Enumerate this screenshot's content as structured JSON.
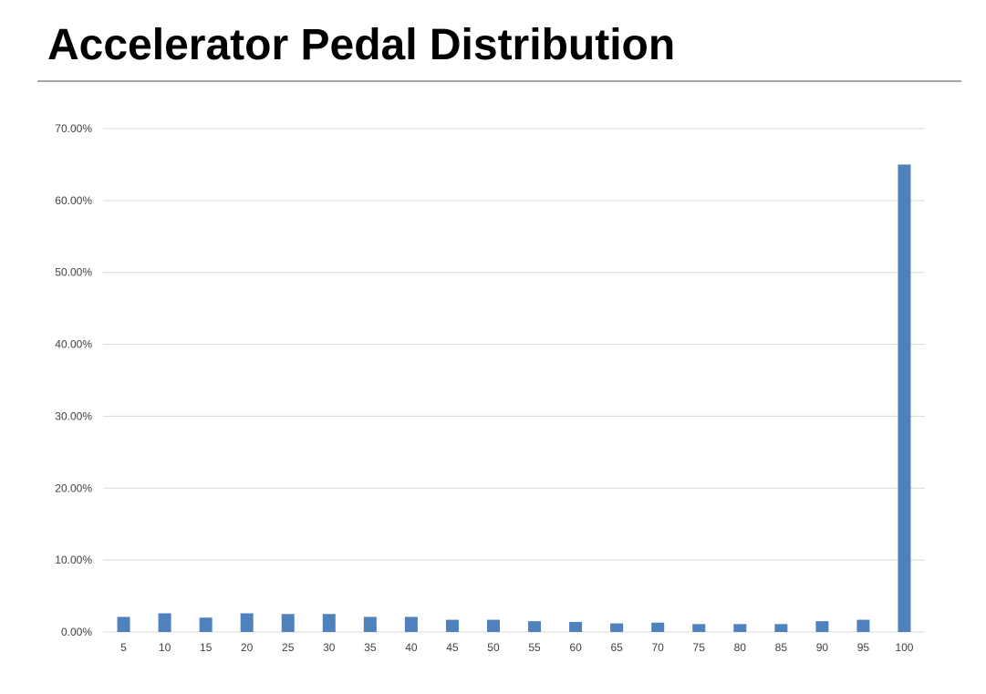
{
  "title": "Accelerator Pedal Distribution",
  "colors": {
    "bar": "#4f81bd",
    "gridline": "#d9d9d9",
    "title_rule": "#a6a6a6",
    "tick_text": "#404040"
  },
  "chart_data": {
    "type": "bar",
    "title": "Accelerator Pedal Distribution",
    "xlabel": "",
    "ylabel": "",
    "categories": [
      "5",
      "10",
      "15",
      "20",
      "25",
      "30",
      "35",
      "40",
      "45",
      "50",
      "55",
      "60",
      "65",
      "70",
      "75",
      "80",
      "85",
      "90",
      "95",
      "100"
    ],
    "values": [
      0.021,
      0.026,
      0.02,
      0.026,
      0.025,
      0.025,
      0.021,
      0.021,
      0.017,
      0.017,
      0.015,
      0.014,
      0.012,
      0.013,
      0.011,
      0.011,
      0.011,
      0.015,
      0.017,
      0.65
    ],
    "ylim": [
      0,
      0.7
    ],
    "yticks": [
      0,
      0.1,
      0.2,
      0.3,
      0.4,
      0.5,
      0.6,
      0.7
    ],
    "ytick_labels": [
      "0.00%",
      "10.00%",
      "20.00%",
      "30.00%",
      "40.00%",
      "50.00%",
      "60.00%",
      "70.00%"
    ],
    "grid": true,
    "legend": "none"
  }
}
